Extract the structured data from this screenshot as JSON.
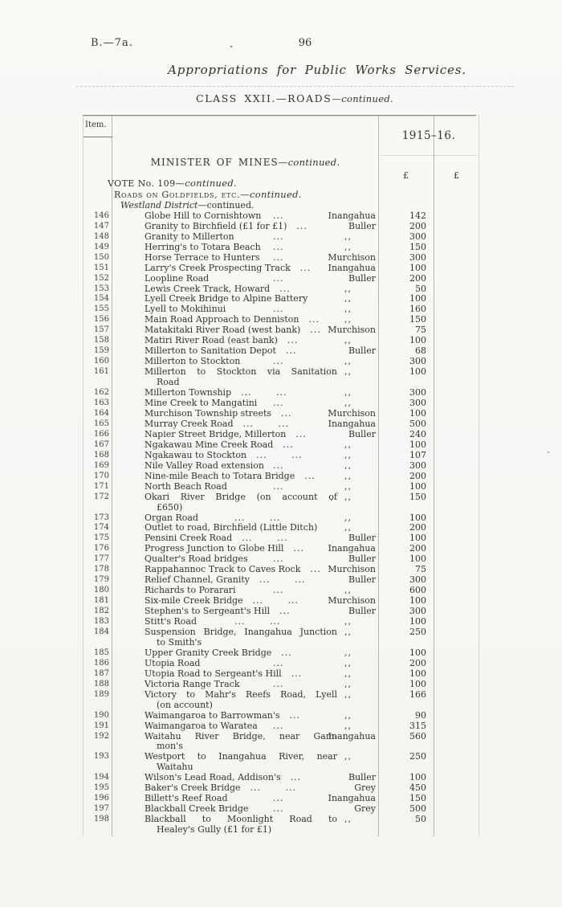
{
  "page": {
    "doc_ref": "B.—7a.",
    "page_number": "96",
    "title": "Appropriations for Public Works Services.",
    "class_heading": {
      "main": "CLASS XXII.—ROADS",
      "suffix": "—continued."
    }
  },
  "table": {
    "item_col_header": "Item.",
    "year_header": "1915–16.",
    "minister_heading": {
      "main": "MINISTER OF MINES",
      "suffix": "—continued."
    },
    "currency_symbol_1": "£",
    "currency_symbol_2": "£",
    "vote_line": {
      "main": "VOTE No. 109",
      "suffix": "—continued."
    },
    "section_line": {
      "main": "Roads on Goldfields, etc.",
      "suffix": "—continued."
    },
    "district_line": {
      "main": "Westland District",
      "suffix": "—continued."
    },
    "rows": [
      {
        "item": "146",
        "desc": "Globe Hill to Cornishtown",
        "desc2": "",
        "dots": "...",
        "district": "Inangahua",
        "amount": "142"
      },
      {
        "item": "147",
        "desc": "Granity to Birchfield (£1 for £1)",
        "desc2": "",
        "dots": "...",
        "district": "Buller",
        "amount": "200"
      },
      {
        "item": "148",
        "desc": "Granity to Millerton",
        "desc2": "",
        "dots": "...",
        "district": ",,",
        "amount": "300"
      },
      {
        "item": "149",
        "desc": "Herring's to Totara Beach",
        "desc2": "",
        "dots": "...",
        "district": ",,",
        "amount": "150"
      },
      {
        "item": "150",
        "desc": "Horse Terrace to Hunters",
        "desc2": "",
        "dots": "...",
        "district": "Murchison",
        "amount": "300"
      },
      {
        "item": "151",
        "desc": "Larry's Creek Prospecting Track",
        "desc2": "",
        "dots": "...",
        "district": "Inangahua",
        "amount": "100"
      },
      {
        "item": "152",
        "desc": "Loopline Road",
        "desc2": "",
        "dots": "...",
        "district": "Buller",
        "amount": "200"
      },
      {
        "item": "153",
        "desc": "Lewis Creek Track, Howard",
        "desc2": "",
        "dots": "...",
        "district": ",,",
        "amount": "50"
      },
      {
        "item": "154",
        "desc": "Lyell Creek Bridge to Alpine Battery",
        "desc2": "",
        "dots": "",
        "district": ",,",
        "amount": "100"
      },
      {
        "item": "155",
        "desc": "Lyell to Mokihinui",
        "desc2": "",
        "dots": "...",
        "district": ",,",
        "amount": "160"
      },
      {
        "item": "156",
        "desc": "Main Road Approach to Denniston",
        "desc2": "",
        "dots": "...",
        "district": ",,",
        "amount": "150"
      },
      {
        "item": "157",
        "desc": "Matakitaki River Road (west bank)",
        "desc2": "",
        "dots": "...",
        "district": "Murchison",
        "amount": "75"
      },
      {
        "item": "158",
        "desc": "Matiri River Road (east bank)",
        "desc2": "",
        "dots": "...",
        "district": ",,",
        "amount": "100"
      },
      {
        "item": "159",
        "desc": "Millerton to Sanitation Depot",
        "desc2": "",
        "dots": "...",
        "district": "Buller",
        "amount": "68"
      },
      {
        "item": "160",
        "desc": "Millerton to Stockton",
        "desc2": "",
        "dots": "...",
        "district": ",,",
        "amount": "300"
      },
      {
        "item": "161",
        "desc": "Millerton to Stockton via Sanitation",
        "desc2": "Road",
        "dots": "",
        "district": ",,",
        "amount": "100"
      },
      {
        "item": "162",
        "desc": "Millerton Township",
        "desc2": "",
        "dots": "... ...",
        "district": ",,",
        "amount": "300"
      },
      {
        "item": "163",
        "desc": "Mine Creek to Mangatini",
        "desc2": "",
        "dots": "...",
        "district": ",,",
        "amount": "300"
      },
      {
        "item": "164",
        "desc": "Murchison Township streets",
        "desc2": "",
        "dots": "...",
        "district": "Murchison",
        "amount": "100"
      },
      {
        "item": "165",
        "desc": "Murray Creek Road",
        "desc2": "",
        "dots": "... ...",
        "district": "Inangahua",
        "amount": "500"
      },
      {
        "item": "166",
        "desc": "Napier Street Bridge, Millerton",
        "desc2": "",
        "dots": "...",
        "district": "Buller",
        "amount": "240"
      },
      {
        "item": "167",
        "desc": "Ngakawau Mine Creek Road",
        "desc2": "",
        "dots": "...",
        "district": ",,",
        "amount": "100"
      },
      {
        "item": "168",
        "desc": "Ngakawau to Stockton",
        "desc2": "",
        "dots": "... ...",
        "district": ",,",
        "amount": "107"
      },
      {
        "item": "169",
        "desc": "Nile Valley Road extension",
        "desc2": "",
        "dots": "...",
        "district": ",,",
        "amount": "300"
      },
      {
        "item": "170",
        "desc": "Nine-mile Beach to Totara Bridge",
        "desc2": "",
        "dots": "...",
        "district": ",,",
        "amount": "200"
      },
      {
        "item": "171",
        "desc": "North Beach Road",
        "desc2": "",
        "dots": "...",
        "district": ",,",
        "amount": "100"
      },
      {
        "item": "172",
        "desc": "Okari River Bridge (on account of",
        "desc2": "£650)",
        "dots": "",
        "district": ",,",
        "amount": "150"
      },
      {
        "item": "173",
        "desc": "Organ Road",
        "desc2": "",
        "dots": "... ...",
        "district": ",,",
        "amount": "100"
      },
      {
        "item": "174",
        "desc": "Outlet to road, Birchfield (Little Ditch)",
        "desc2": "",
        "dots": "",
        "district": ",,",
        "amount": "200"
      },
      {
        "item": "175",
        "desc": "Pensini Creek Road",
        "desc2": "",
        "dots": "... ...",
        "district": "Buller",
        "amount": "100"
      },
      {
        "item": "176",
        "desc": "Progress Junction to Globe Hill",
        "desc2": "",
        "dots": "...",
        "district": "Inangahua",
        "amount": "200"
      },
      {
        "item": "177",
        "desc": "Qualter's Road bridges",
        "desc2": "",
        "dots": "...",
        "district": "Buller",
        "amount": "100"
      },
      {
        "item": "178",
        "desc": "Rappahannoc Track to Caves Rock",
        "desc2": "",
        "dots": "...",
        "district": "Murchison",
        "amount": "75"
      },
      {
        "item": "179",
        "desc": "Relief Channel, Granity",
        "desc2": "",
        "dots": "... ...",
        "district": "Buller",
        "amount": "300"
      },
      {
        "item": "180",
        "desc": "Richards to Porarari",
        "desc2": "",
        "dots": "...",
        "district": ",,",
        "amount": "600"
      },
      {
        "item": "181",
        "desc": "Six-mile Creek Bridge",
        "desc2": "",
        "dots": "... ...",
        "district": "Murchison",
        "amount": "100"
      },
      {
        "item": "182",
        "desc": "Stephen's to Sergeant's Hill",
        "desc2": "",
        "dots": "...",
        "district": "Buller",
        "amount": "300"
      },
      {
        "item": "183",
        "desc": "Stitt's Road",
        "desc2": "",
        "dots": "... ...",
        "district": ",,",
        "amount": "100"
      },
      {
        "item": "184",
        "desc": "Suspension Bridge, Inangahua Junction",
        "desc2": "to Smith's",
        "dots": "",
        "district": ",,",
        "amount": "250"
      },
      {
        "item": "185",
        "desc": "Upper Granity Creek Bridge",
        "desc2": "",
        "dots": "...",
        "district": ",,",
        "amount": "100"
      },
      {
        "item": "186",
        "desc": "Utopia Road",
        "desc2": "",
        "dots": "...",
        "district": ",,",
        "amount": "200"
      },
      {
        "item": "187",
        "desc": "Utopia Road to Sergeant's Hill",
        "desc2": "",
        "dots": "...",
        "district": ",,",
        "amount": "100"
      },
      {
        "item": "188",
        "desc": "Victoria Range Track",
        "desc2": "",
        "dots": "...",
        "district": ",,",
        "amount": "100"
      },
      {
        "item": "189",
        "desc": "Victory to Mahr's Reefs Road, Lyell",
        "desc2": "(on account)",
        "dots": "",
        "district": ",,",
        "amount": "166"
      },
      {
        "item": "190",
        "desc": "Waimangaroa to Barrowman's",
        "desc2": "",
        "dots": "...",
        "district": ",,",
        "amount": "90"
      },
      {
        "item": "191",
        "desc": "Waimangaroa to Waratea",
        "desc2": "",
        "dots": "...",
        "district": ",,",
        "amount": "315"
      },
      {
        "item": "192",
        "desc": "Waitahu River Bridge, near Gam-",
        "desc2": "mon's",
        "dots": "",
        "district": "Inangahua",
        "amount": "560"
      },
      {
        "item": "193",
        "desc": "Westport to Inangahua River, near",
        "desc2": "Waitahu",
        "dots": "",
        "district": ",,",
        "amount": "250"
      },
      {
        "item": "194",
        "desc": "Wilson's Lead Road, Addison's",
        "desc2": "",
        "dots": "...",
        "district": "Buller",
        "amount": "100"
      },
      {
        "item": "195",
        "desc": "Baker's Creek Bridge",
        "desc2": "",
        "dots": "... ...",
        "district": "Grey",
        "amount": "450"
      },
      {
        "item": "196",
        "desc": "Billett's Reef Road",
        "desc2": "",
        "dots": "...",
        "district": "Inangahua",
        "amount": "150"
      },
      {
        "item": "197",
        "desc": "Blackball Creek Bridge",
        "desc2": "",
        "dots": "...",
        "district": "Grey",
        "amount": "500"
      },
      {
        "item": "198",
        "desc": "Blackball to Moonlight Road to",
        "desc2": "Healey's Gully (£1 for £1)",
        "dots": "",
        "district": ",,",
        "amount": "50"
      }
    ]
  }
}
